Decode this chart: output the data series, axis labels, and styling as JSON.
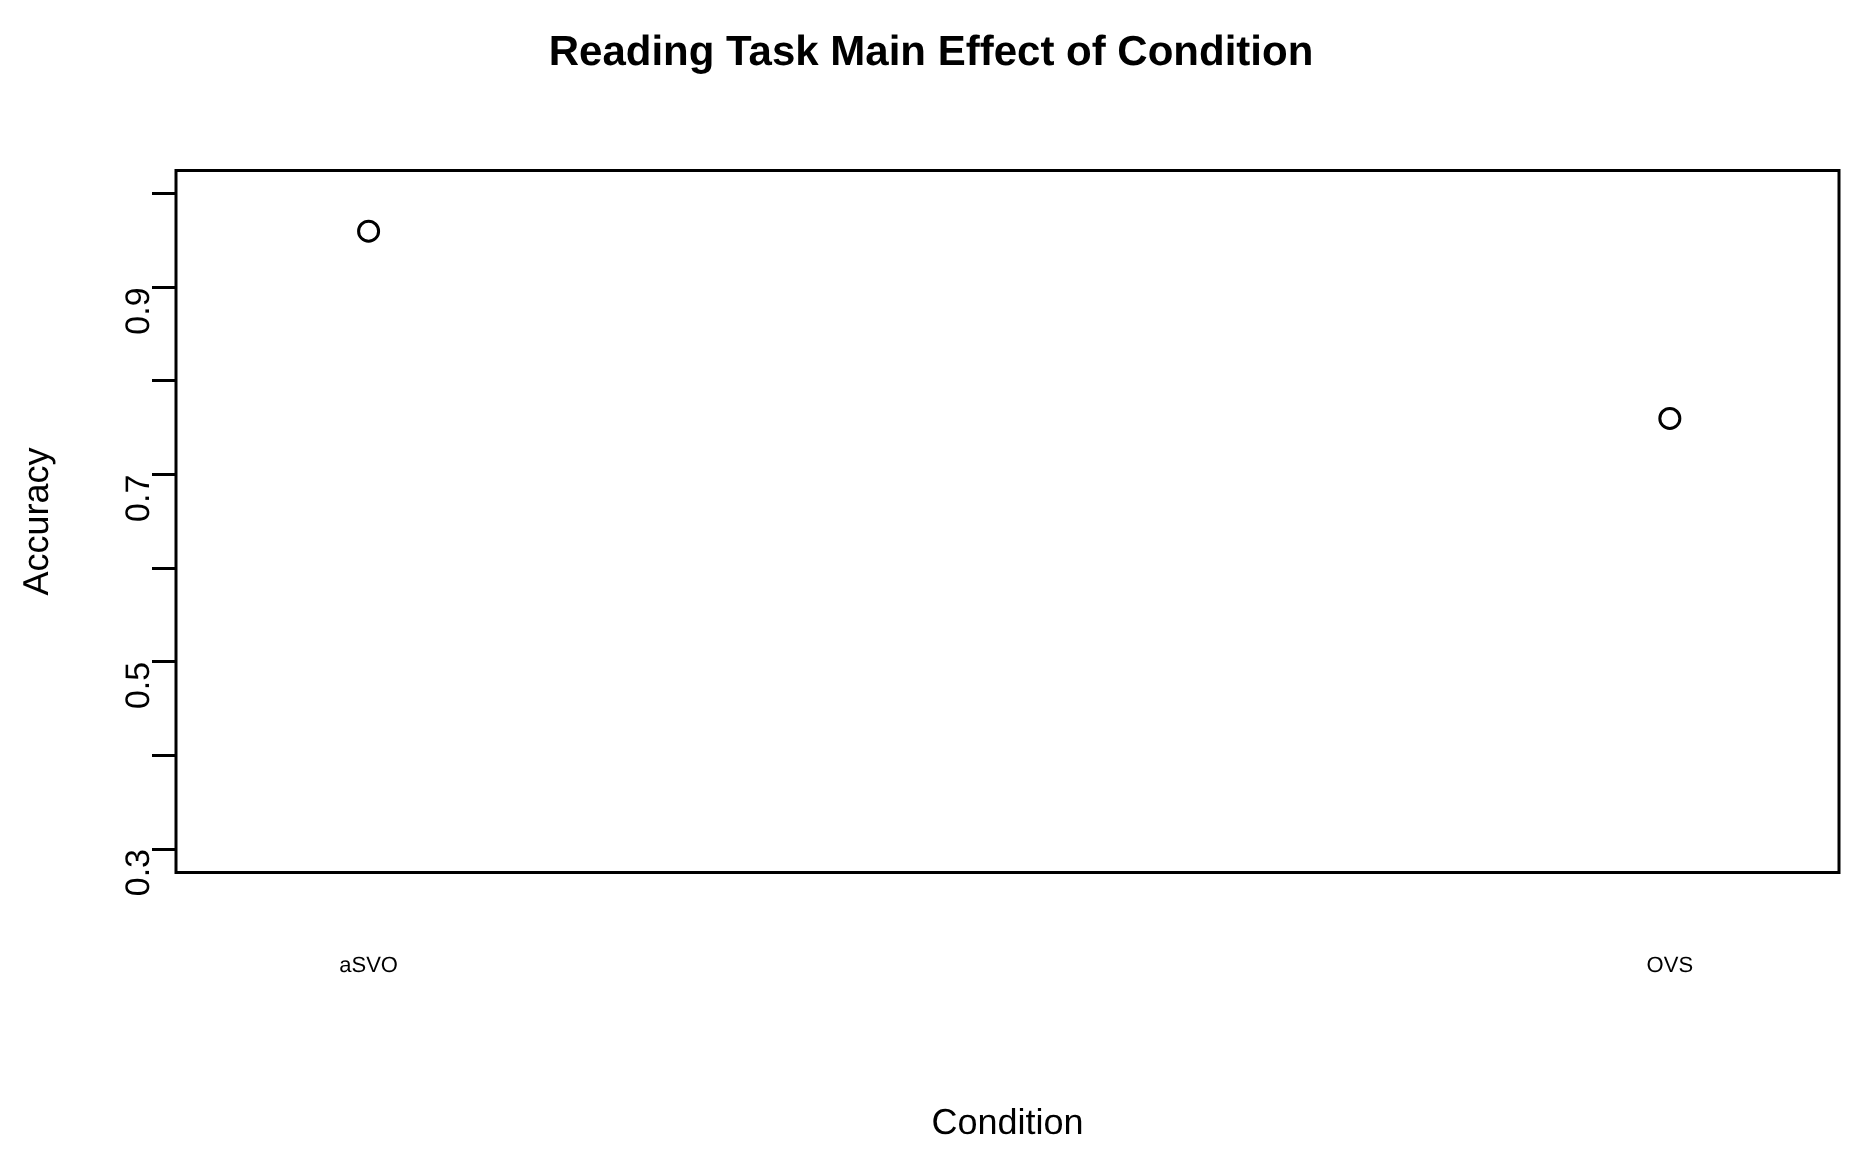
{
  "chart_data": {
    "type": "scatter",
    "title": "Reading Task Main Effect of Condition",
    "xlabel": "Condition",
    "ylabel": "Accuracy",
    "categories": [
      "aSVO",
      "OVS"
    ],
    "values": [
      0.96,
      0.76
    ],
    "color": "#000000",
    "marker": "circle",
    "grid": false,
    "legend": false,
    "ylim": [
      0.275,
      1.025
    ],
    "yticks": [
      0.3,
      {
        "value": 0.4,
        "label": null
      },
      0.5,
      {
        "value": 0.6,
        "label": null
      },
      0.7,
      {
        "value": 0.8,
        "label": null
      },
      0.9,
      {
        "value": 1.0,
        "label": null
      }
    ]
  }
}
